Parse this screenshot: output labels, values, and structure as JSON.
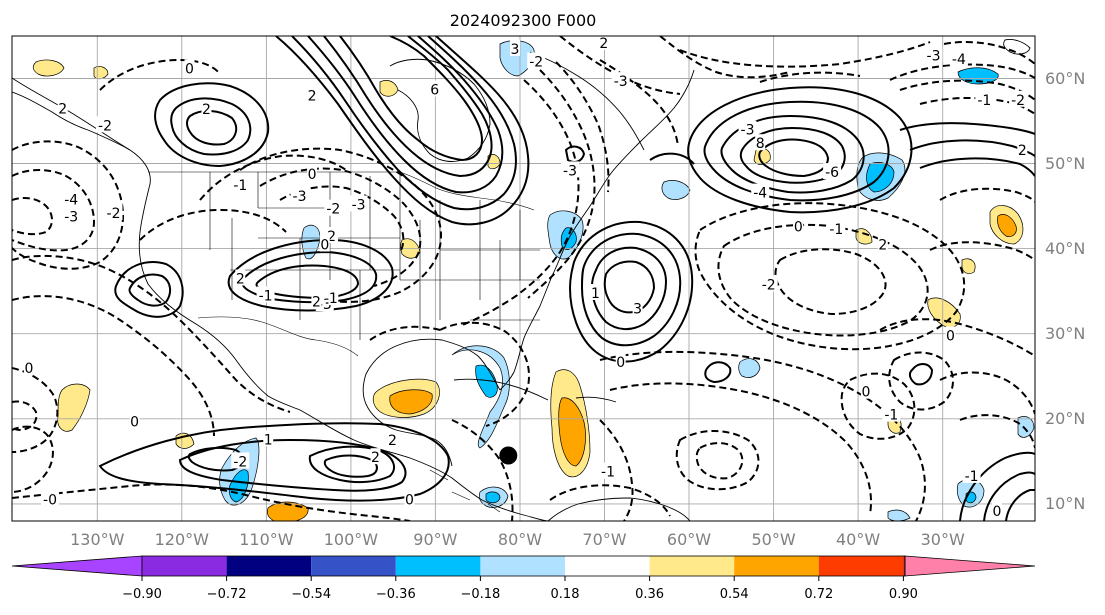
{
  "title": "2024092300 F000",
  "map": {
    "lon_labels": [
      "130°W",
      "120°W",
      "110°W",
      "100°W",
      "90°W",
      "80°W",
      "70°W",
      "60°W",
      "50°W",
      "40°W",
      "30°W"
    ],
    "lat_labels": [
      "60°N",
      "50°N",
      "40°N",
      "30°N",
      "20°N",
      "10°N"
    ],
    "extent": {
      "lon": [
        -139,
        -18
      ],
      "lat": [
        8,
        65
      ]
    },
    "marker": {
      "name": "storm-center",
      "lon": -80.3,
      "lat": 15.7,
      "color": "#000000"
    },
    "contour_labels": [
      {
        "text": "0",
        "lon": -118,
        "lat": 61.2
      },
      {
        "text": "2",
        "lon": -116,
        "lat": 56.4
      },
      {
        "text": "-2",
        "lon": -128,
        "lat": 54.5
      },
      {
        "text": "2",
        "lon": -133,
        "lat": 56.5
      },
      {
        "text": "-4",
        "lon": -132,
        "lat": 45.8
      },
      {
        "text": "-3",
        "lon": -132,
        "lat": 43.8
      },
      {
        "text": "-2",
        "lon": -127,
        "lat": 44.2
      },
      {
        "text": "2",
        "lon": -103.5,
        "lat": 58
      },
      {
        "text": "0",
        "lon": -103.5,
        "lat": 48.8
      },
      {
        "text": "-2",
        "lon": -101,
        "lat": 44.7
      },
      {
        "text": "-1",
        "lon": -112,
        "lat": 47.5
      },
      {
        "text": "-3",
        "lon": -105,
        "lat": 46.2
      },
      {
        "text": "-3",
        "lon": -98,
        "lat": 45.2
      },
      {
        "text": "2",
        "lon": -112,
        "lat": 36.5
      },
      {
        "text": "-2",
        "lon": -101.5,
        "lat": 41.5
      },
      {
        "text": "0",
        "lon": -102,
        "lat": 40.5
      },
      {
        "text": "6",
        "lon": -89,
        "lat": 58.7
      },
      {
        "text": "-2",
        "lon": -77,
        "lat": 62
      },
      {
        "text": "3",
        "lon": -79.5,
        "lat": 63.5
      },
      {
        "text": "-3",
        "lon": -73,
        "lat": 49.2
      },
      {
        "text": "-3",
        "lon": -67,
        "lat": 59.7
      },
      {
        "text": "-3",
        "lon": -102,
        "lat": 33.5
      },
      {
        "text": "2",
        "lon": -103,
        "lat": 33.8
      },
      {
        "text": "1",
        "lon": -101,
        "lat": 34.2
      },
      {
        "text": "-1",
        "lon": -109,
        "lat": 34.5
      },
      {
        "text": "1",
        "lon": -70,
        "lat": 34.8
      },
      {
        "text": "3",
        "lon": -65,
        "lat": 33
      },
      {
        "text": "0",
        "lon": -67,
        "lat": 26.7
      },
      {
        "text": "8",
        "lon": -50.5,
        "lat": 52.4
      },
      {
        "text": "-4",
        "lon": -50.5,
        "lat": 46.6
      },
      {
        "text": "-6",
        "lon": -42,
        "lat": 49
      },
      {
        "text": "-3",
        "lon": -52,
        "lat": 54
      },
      {
        "text": "0",
        "lon": -46,
        "lat": 42.6
      },
      {
        "text": "-1",
        "lon": -41.5,
        "lat": 42.3
      },
      {
        "text": "2",
        "lon": -36,
        "lat": 40.5
      },
      {
        "text": "-2",
        "lon": -49.5,
        "lat": 35.8
      },
      {
        "text": "0",
        "lon": -28,
        "lat": 29.8
      },
      {
        "text": "0",
        "lon": -38,
        "lat": 23.2
      },
      {
        "text": "-1",
        "lon": -35,
        "lat": 20.5
      },
      {
        "text": "-1",
        "lon": -68.5,
        "lat": 13.8
      },
      {
        "text": "-3",
        "lon": -30,
        "lat": 62.7
      },
      {
        "text": "-4",
        "lon": -27,
        "lat": 62.3
      },
      {
        "text": "-2",
        "lon": -20,
        "lat": 57.5
      },
      {
        "text": "2",
        "lon": -19.5,
        "lat": 51.6
      },
      {
        "text": "-1",
        "lon": -24,
        "lat": 57.5
      },
      {
        "text": "1",
        "lon": -108.7,
        "lat": 17.6
      },
      {
        "text": "2",
        "lon": -96,
        "lat": 15.5
      },
      {
        "text": "2",
        "lon": -94,
        "lat": 17.5
      },
      {
        "text": "-2",
        "lon": -112,
        "lat": 15
      },
      {
        "text": "0",
        "lon": -124.5,
        "lat": 19.7
      },
      {
        "text": "-0",
        "lon": -134.5,
        "lat": 10.5
      },
      {
        "text": "0",
        "lon": -92,
        "lat": 10.5
      },
      {
        "text": "-1",
        "lon": -25.5,
        "lat": 13.3
      },
      {
        "text": "0",
        "lon": -22.5,
        "lat": 9.2
      },
      {
        "text": "0",
        "lon": -137,
        "lat": 26
      },
      {
        "text": "2",
        "lon": -69,
        "lat": 64.2
      }
    ]
  },
  "colorbar": {
    "colors": [
      "#a844ff",
      "#8a2be2",
      "#000080",
      "#3552c6",
      "#00bfff",
      "#b0e2ff",
      "#ffffff",
      "#ffe98a",
      "#ffa500",
      "#ff3c00",
      "#b22222",
      "#ff80a8",
      "#ff80a8"
    ],
    "tick_labels": [
      "−0.90",
      "−0.72",
      "−0.54",
      "−0.36",
      "−0.18",
      "0.18",
      "0.36",
      "0.54",
      "0.72",
      "0.90"
    ]
  },
  "fill_colors": {
    "light_blue": "#b0e2ff",
    "blue": "#00bfff",
    "yellow": "#ffe98a",
    "orange": "#ffa500"
  }
}
